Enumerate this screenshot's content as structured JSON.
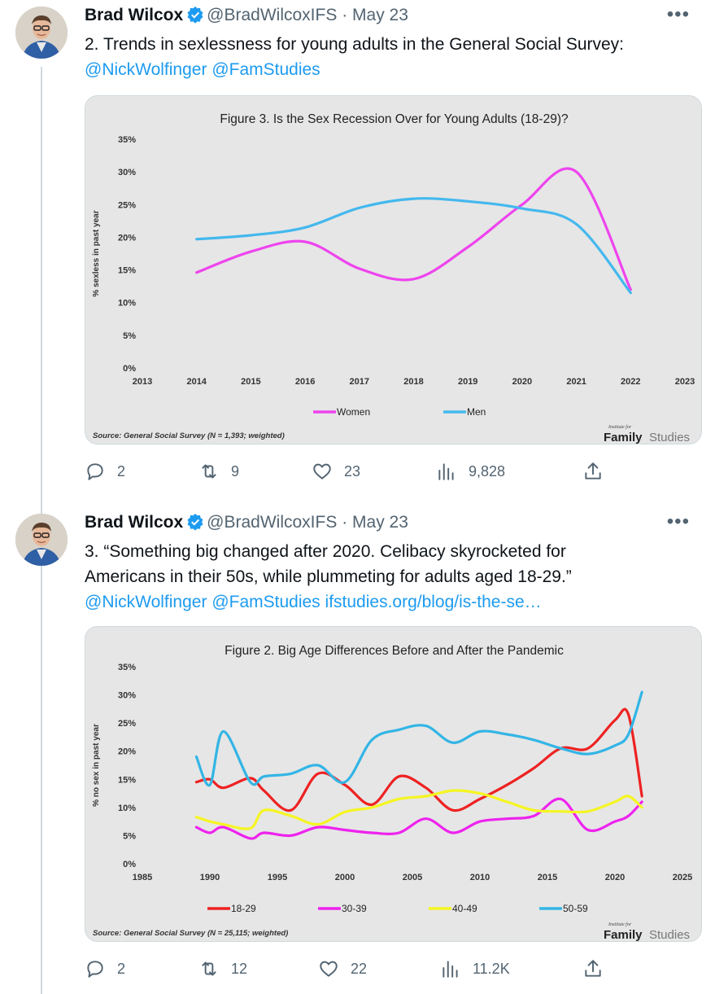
{
  "tweets": [
    {
      "author": "Brad Wilcox",
      "handle": "@BradWilcoxIFS",
      "separator": "·",
      "date": "May 23",
      "text_lines": [
        "2. Trends in sexlessness for young adults in the General Social Survey:"
      ],
      "links_line": [
        "@NickWolfinger",
        "@FamStudies"
      ],
      "actions": {
        "replies": "2",
        "retweets": "9",
        "likes": "23",
        "views": "9,828"
      }
    },
    {
      "author": "Brad Wilcox",
      "handle": "@BradWilcoxIFS",
      "separator": "·",
      "date": "May 23",
      "text_lines": [
        "3.  “Something big changed after 2020. Celibacy skyrocketed for",
        "Americans in their 50s, while plummeting for adults aged 18-29.”"
      ],
      "links_line": [
        "@NickWolfinger",
        "@FamStudies",
        "ifstudies.org/blog/is-the-se…"
      ],
      "actions": {
        "replies": "2",
        "retweets": "12",
        "likes": "22",
        "views": "11.2K"
      }
    }
  ],
  "chart_data": [
    {
      "type": "line",
      "title": "Figure 3. Is the Sex Recession Over for Young Adults (18-29)?",
      "xlabel": "",
      "ylabel": "% sexless in past year",
      "xlim": [
        2013,
        2023
      ],
      "ylim": [
        0,
        35
      ],
      "x_ticks": [
        "2013",
        "2014",
        "2015",
        "2016",
        "2017",
        "2018",
        "2019",
        "2020",
        "2021",
        "2022",
        "2023"
      ],
      "y_ticks": [
        "0%",
        "5%",
        "10%",
        "15%",
        "20%",
        "25%",
        "30%",
        "35%"
      ],
      "grid": false,
      "legend": "bottom",
      "series": [
        {
          "name": "Women",
          "color": "#ee44ee",
          "x": [
            2014,
            2015,
            2016,
            2017,
            2018,
            2019,
            2020,
            2021,
            2022
          ],
          "values": [
            14.6,
            17.8,
            19.3,
            15.2,
            13.6,
            18.5,
            25.0,
            30.0,
            12.0
          ]
        },
        {
          "name": "Men",
          "color": "#44b8ee",
          "x": [
            2014,
            2015,
            2016,
            2017,
            2018,
            2019,
            2020,
            2021,
            2022
          ],
          "values": [
            19.7,
            20.3,
            21.5,
            24.5,
            25.9,
            25.5,
            24.4,
            22.0,
            11.5
          ]
        }
      ],
      "source": "Source: General Social Survey (N = 1,393; weighted)",
      "brand_small": "Institute for",
      "brand_bold": "Family",
      "brand_light": "Studies"
    },
    {
      "type": "line",
      "title": "Figure 2. Big Age Differences Before and After the Pandemic",
      "xlabel": "",
      "ylabel": "% no sex in past year",
      "xlim": [
        1985,
        2025
      ],
      "ylim": [
        0,
        35
      ],
      "x_ticks": [
        "1985",
        "1990",
        "1995",
        "2000",
        "2005",
        "2010",
        "2015",
        "2020",
        "2025"
      ],
      "y_ticks": [
        "0%",
        "5%",
        "10%",
        "15%",
        "20%",
        "25%",
        "30%",
        "35%"
      ],
      "grid": false,
      "legend": "bottom",
      "series": [
        {
          "name": "18-29",
          "color": "#ee2222",
          "x": [
            1989,
            1990,
            1991,
            1993,
            1994,
            1996,
            1998,
            2000,
            2002,
            2004,
            2006,
            2008,
            2010,
            2012,
            2014,
            2016,
            2018,
            2020,
            2021,
            2022
          ],
          "values": [
            14.5,
            15.0,
            13.5,
            15.2,
            13.0,
            9.5,
            16.0,
            14.0,
            10.5,
            15.5,
            13.5,
            9.5,
            11.5,
            14.0,
            17.0,
            20.5,
            20.5,
            25.5,
            26.5,
            12.0
          ]
        },
        {
          "name": "30-39",
          "color": "#ee22ee",
          "x": [
            1989,
            1990,
            1991,
            1993,
            1994,
            1996,
            1998,
            2000,
            2002,
            2004,
            2006,
            2008,
            2010,
            2012,
            2014,
            2016,
            2018,
            2020,
            2021,
            2022
          ],
          "values": [
            6.5,
            5.5,
            6.5,
            4.5,
            5.5,
            5.0,
            6.5,
            6.0,
            5.5,
            5.5,
            8.0,
            5.5,
            7.5,
            8.0,
            8.5,
            11.5,
            6.0,
            7.5,
            8.5,
            11.0
          ]
        },
        {
          "name": "40-49",
          "color": "#f5f522",
          "x": [
            1989,
            1990,
            1991,
            1993,
            1994,
            1996,
            1998,
            2000,
            2002,
            2004,
            2006,
            2008,
            2010,
            2012,
            2014,
            2016,
            2018,
            2020,
            2021,
            2022
          ],
          "values": [
            8.3,
            7.5,
            7.0,
            6.3,
            9.5,
            8.5,
            7.0,
            9.2,
            10.0,
            11.5,
            12.0,
            13.0,
            12.5,
            11.0,
            9.5,
            9.3,
            9.3,
            11.0,
            12.0,
            10.0
          ]
        },
        {
          "name": "50-59",
          "color": "#33b5e5",
          "x": [
            1989,
            1990,
            1991,
            1993,
            1994,
            1996,
            1998,
            2000,
            2002,
            2004,
            2006,
            2008,
            2010,
            2012,
            2014,
            2016,
            2018,
            2020,
            2021,
            2022
          ],
          "values": [
            19.0,
            14.0,
            23.5,
            14.5,
            15.5,
            16.0,
            17.5,
            14.5,
            22.0,
            23.8,
            24.5,
            21.5,
            23.5,
            23.0,
            22.0,
            20.5,
            19.5,
            21.0,
            23.0,
            30.5
          ]
        }
      ],
      "source": "Source: General Social Survey (N = 25,115; weighted)",
      "brand_small": "Institute for",
      "brand_bold": "Family",
      "brand_light": "Studies"
    }
  ]
}
